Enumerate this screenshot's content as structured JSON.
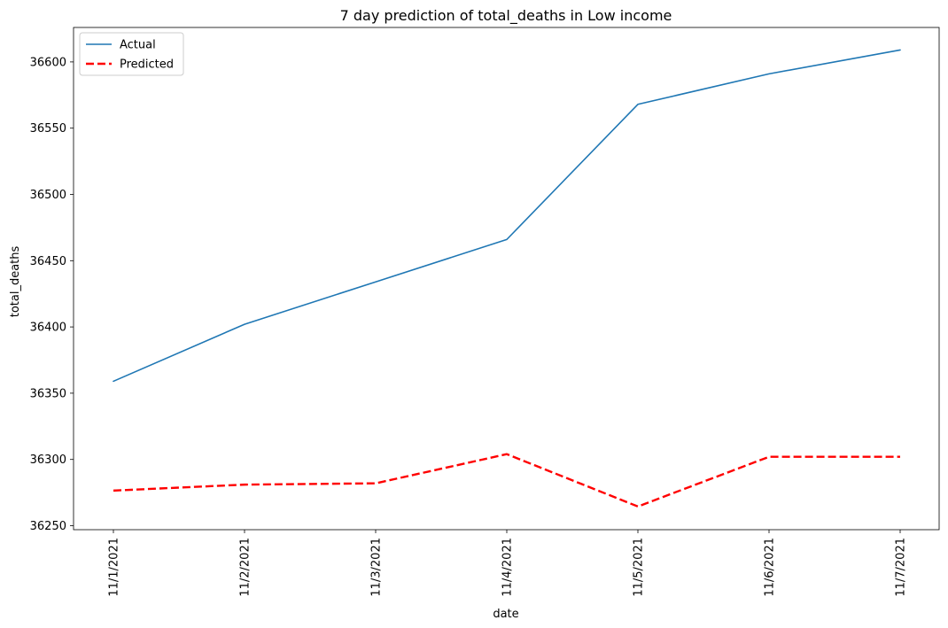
{
  "chart_data": {
    "type": "line",
    "title": "7 day prediction of total_deaths in Low income",
    "xlabel": "date",
    "ylabel": "total_deaths",
    "categories": [
      "11/1/2021",
      "11/2/2021",
      "11/3/2021",
      "11/4/2021",
      "11/5/2021",
      "11/6/2021",
      "11/7/2021"
    ],
    "y_ticks": [
      36250,
      36300,
      36350,
      36400,
      36450,
      36500,
      36550,
      36600
    ],
    "ylim": [
      36247,
      36626
    ],
    "grid": false,
    "legend_position": "upper-left",
    "series": [
      {
        "name": "Actual",
        "color": "#1f77b4",
        "style": "solid",
        "values": [
          36359,
          36402,
          36434,
          36466,
          36568,
          36591,
          36609
        ]
      },
      {
        "name": "Predicted",
        "color": "#ff0000",
        "style": "dashed",
        "values": [
          36276.5,
          36281,
          36282,
          36304,
          36264.5,
          36302,
          36302
        ]
      }
    ]
  }
}
